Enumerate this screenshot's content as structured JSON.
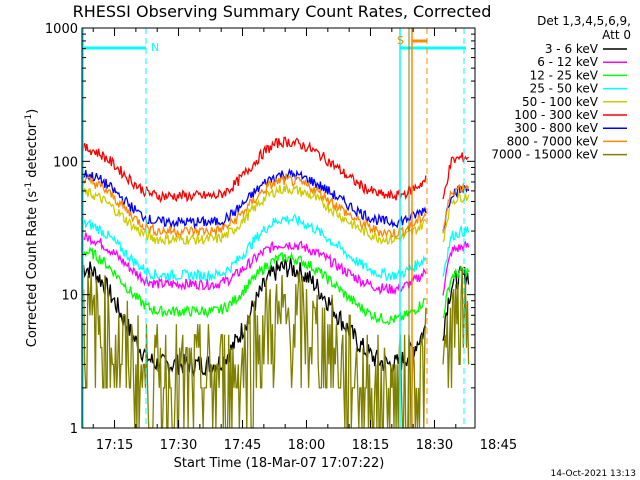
{
  "chart_data": {
    "type": "line",
    "title": "RHESSI Observing Summary Count Rates, Corrected",
    "xlabel": "Start Time (18-Mar-07 17:07:22)",
    "ylabel_main": "Corrected Count Rate (s",
    "ylabel_sup1": "-1",
    "ylabel_mid": " detector",
    "ylabel_sup2": "-1",
    "ylabel_end": ")",
    "yscale": "log",
    "ylim": [
      1,
      1000
    ],
    "xlim_minutes": [
      7.37,
      99.5
    ],
    "x_ticks": [
      {
        "label": "17:15",
        "minutes": 15
      },
      {
        "label": "17:30",
        "minutes": 30
      },
      {
        "label": "17:45",
        "minutes": 45
      },
      {
        "label": "18:00",
        "minutes": 60
      },
      {
        "label": "18:15",
        "minutes": 75
      },
      {
        "label": "18:30",
        "minutes": 90
      },
      {
        "label": "18:45",
        "minutes": 105
      }
    ],
    "y_ticks": [
      {
        "label": "1",
        "value": 1
      },
      {
        "label": "10",
        "value": 10
      },
      {
        "label": "100",
        "value": 100
      },
      {
        "label": "1000",
        "value": 1000
      }
    ],
    "legend": {
      "header1": "Det 1,3,4,5,6,9,",
      "header2": "Att 0",
      "placement": "right"
    },
    "series": [
      {
        "name": "3 - 6 keV",
        "color": "#000000",
        "min_minutes": [
          26,
          80,
          90
        ],
        "values": [
          16,
          3,
          3,
          16,
          3,
          14
        ],
        "x": [
          7.5,
          26,
          38,
          55,
          80,
          98
        ]
      },
      {
        "name": "6 - 12 keV",
        "color": "#ff00ff",
        "x": [
          7.5,
          26,
          38,
          55,
          80,
          98
        ],
        "values": [
          27,
          12,
          12,
          24,
          11,
          23
        ]
      },
      {
        "name": "12 - 25 keV",
        "color": "#00ff00",
        "x": [
          7.5,
          26,
          38,
          55,
          80,
          98
        ],
        "values": [
          21,
          7.5,
          7.5,
          19,
          6.5,
          15
        ]
      },
      {
        "name": "25 - 50 keV",
        "color": "#00ffff",
        "x": [
          7.5,
          26,
          38,
          55,
          80,
          98
        ],
        "values": [
          34,
          14,
          14,
          37,
          14,
          30
        ]
      },
      {
        "name": "50 - 100 keV",
        "color": "#cccc00",
        "x": [
          7.5,
          26,
          38,
          55,
          80,
          98
        ],
        "values": [
          58,
          26,
          26,
          62,
          26,
          55
        ]
      },
      {
        "name": "100 - 300 keV",
        "color": "#ff0000",
        "x": [
          7.5,
          26,
          38,
          55,
          80,
          98
        ],
        "values": [
          125,
          55,
          55,
          140,
          55,
          108
        ]
      },
      {
        "name": "300 - 800 keV",
        "color": "#0000ff",
        "x": [
          7.5,
          26,
          38,
          55,
          80,
          98
        ],
        "values": [
          80,
          35,
          35,
          80,
          35,
          62
        ]
      },
      {
        "name": "800 - 7000 keV",
        "color": "#ff8800",
        "x": [
          7.5,
          26,
          38,
          55,
          80,
          98
        ],
        "values": [
          72,
          30,
          30,
          72,
          29,
          65
        ]
      },
      {
        "name": "7000 - 15000 keV",
        "color": "#808000",
        "x": [
          7.5,
          26,
          38,
          55,
          80,
          98
        ],
        "values": [
          6,
          2.2,
          2.2,
          6,
          1.8,
          6
        ]
      }
    ],
    "annotations": {
      "n_label": "N",
      "s_label": "S",
      "night_color": "#00ffff",
      "saa_color": "#ff8800",
      "corner_timestamp": "14-Oct-2021 13:13"
    },
    "grid": false
  }
}
